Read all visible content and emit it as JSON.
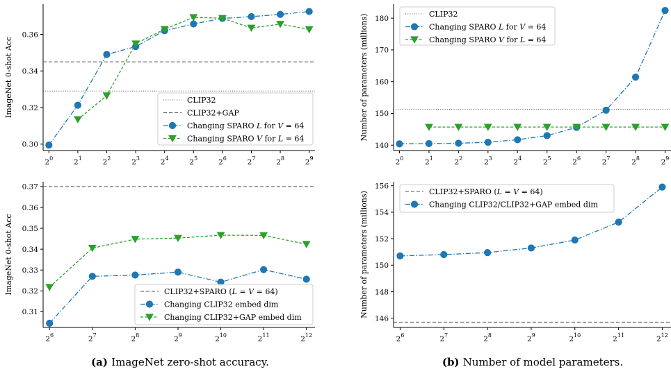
{
  "colors": {
    "blue": "#1f77b4",
    "green": "#2ca02c",
    "ref_line": "#555555"
  },
  "captions": [
    {
      "tag": "(a)",
      "text": "ImageNet zero-shot accuracy."
    },
    {
      "tag": "(b)",
      "text": "Number of model parameters."
    }
  ],
  "chart_data": [
    {
      "type": "line",
      "ylabel": "ImageNet 0-shot Acc",
      "x_ticks": [
        {
          "base": "2",
          "exp": "0"
        },
        {
          "base": "2",
          "exp": "1"
        },
        {
          "base": "2",
          "exp": "2"
        },
        {
          "base": "2",
          "exp": "3"
        },
        {
          "base": "2",
          "exp": "4"
        },
        {
          "base": "2",
          "exp": "5"
        },
        {
          "base": "2",
          "exp": "6"
        },
        {
          "base": "2",
          "exp": "7"
        },
        {
          "base": "2",
          "exp": "8"
        },
        {
          "base": "2",
          "exp": "9"
        }
      ],
      "x": [
        0,
        1,
        2,
        3,
        4,
        5,
        6,
        7,
        8,
        9
      ],
      "xlim": [
        -0.2,
        9.2
      ],
      "ylim": [
        0.2965,
        0.3765
      ],
      "y_ticks": [
        "0.30",
        "0.32",
        "0.34",
        "0.36"
      ],
      "hlines": [
        {
          "name": "CLIP32",
          "value": 0.329,
          "style": "dotted"
        },
        {
          "name": "CLIP32+GAP",
          "value": 0.345,
          "style": "dashed"
        }
      ],
      "series": [
        {
          "name": "Changing SPARO L for V = 64",
          "name_parts": [
            "Changing SPARO ",
            "L",
            " for ",
            "V",
            " = 64"
          ],
          "marker": "circle",
          "color": "blue",
          "x": [
            0,
            1,
            2,
            3,
            4,
            5,
            6,
            7,
            8,
            9
          ],
          "values": [
            0.2995,
            0.3213,
            0.349,
            0.3533,
            0.362,
            0.3657,
            0.3687,
            0.3697,
            0.3709,
            0.3725
          ]
        },
        {
          "name": "Changing SPARO V for L = 64",
          "name_parts": [
            "Changing SPARO ",
            "V",
            " for ",
            "L",
            " = 64"
          ],
          "marker": "triangle",
          "color": "green",
          "x": [
            1,
            2,
            3,
            4,
            5,
            6,
            7,
            8,
            9
          ],
          "values": [
            0.3135,
            0.3265,
            0.3549,
            0.3628,
            0.3693,
            0.3688,
            0.3635,
            0.3656,
            0.3627
          ]
        }
      ],
      "legend": "lower-right"
    },
    {
      "type": "line",
      "ylabel": "Number of parameters (millions)",
      "x_ticks": [
        {
          "base": "2",
          "exp": "0"
        },
        {
          "base": "2",
          "exp": "1"
        },
        {
          "base": "2",
          "exp": "2"
        },
        {
          "base": "2",
          "exp": "3"
        },
        {
          "base": "2",
          "exp": "4"
        },
        {
          "base": "2",
          "exp": "5"
        },
        {
          "base": "2",
          "exp": "6"
        },
        {
          "base": "2",
          "exp": "7"
        },
        {
          "base": "2",
          "exp": "8"
        },
        {
          "base": "2",
          "exp": "9"
        }
      ],
      "x": [
        0,
        1,
        2,
        3,
        4,
        5,
        6,
        7,
        8,
        9
      ],
      "xlim": [
        -0.2,
        9.2
      ],
      "ylim": [
        138.3,
        184.4
      ],
      "y_ticks": [
        "140",
        "150",
        "160",
        "170",
        "180"
      ],
      "hlines": [
        {
          "name": "CLIP32",
          "value": 151.3,
          "style": "dotted"
        }
      ],
      "series": [
        {
          "name": "Changing SPARO L for V = 64",
          "name_parts": [
            "Changing SPARO ",
            "L",
            " for ",
            "V",
            " = 64"
          ],
          "marker": "circle",
          "color": "blue",
          "x": [
            0,
            1,
            2,
            3,
            4,
            5,
            6,
            7,
            8,
            9
          ],
          "values": [
            140.4,
            140.5,
            140.6,
            140.9,
            141.7,
            143.0,
            145.6,
            151.0,
            161.4,
            182.4
          ]
        },
        {
          "name": "Changing SPARO V for L = 64",
          "name_parts": [
            "Changing SPARO ",
            "V",
            " for ",
            "L",
            " = 64"
          ],
          "marker": "triangle",
          "color": "green",
          "x": [
            1,
            2,
            3,
            4,
            5,
            6,
            7,
            8,
            9
          ],
          "values": [
            145.7,
            145.7,
            145.7,
            145.7,
            145.7,
            145.7,
            145.7,
            145.7,
            145.7
          ]
        }
      ],
      "legend": "top-left"
    },
    {
      "type": "line",
      "ylabel": "ImageNet 0-shot Acc",
      "x_ticks": [
        {
          "base": "2",
          "exp": "6"
        },
        {
          "base": "2",
          "exp": "7"
        },
        {
          "base": "2",
          "exp": "8"
        },
        {
          "base": "2",
          "exp": "9"
        },
        {
          "base": "2",
          "exp": "10"
        },
        {
          "base": "2",
          "exp": "11"
        },
        {
          "base": "2",
          "exp": "12"
        }
      ],
      "x": [
        6,
        7,
        8,
        9,
        10,
        11,
        12
      ],
      "xlim": [
        5.85,
        12.2
      ],
      "ylim": [
        0.3025,
        0.3723
      ],
      "y_ticks": [
        "0.31",
        "0.32",
        "0.33",
        "0.34",
        "0.35",
        "0.36",
        "0.37"
      ],
      "hlines": [
        {
          "name": "CLIP32+SPARO (L = V = 64)",
          "value": 0.37,
          "style": "dashed"
        }
      ],
      "series": [
        {
          "name": "Changing CLIP32 embed dim",
          "marker": "circle",
          "color": "blue",
          "x": [
            6,
            7,
            8,
            9,
            10,
            11,
            12
          ],
          "values": [
            0.3045,
            0.327,
            0.3276,
            0.329,
            0.3242,
            0.3302,
            0.3256
          ]
        },
        {
          "name": "Changing CLIP32+GAP embed dim",
          "marker": "triangle",
          "color": "green",
          "x": [
            6,
            7,
            8,
            9,
            10,
            11,
            12
          ],
          "values": [
            0.3218,
            0.3405,
            0.3448,
            0.3453,
            0.3467,
            0.3466,
            0.3424
          ]
        }
      ],
      "legend": "lower-right"
    },
    {
      "type": "line",
      "ylabel": "Number of parameters (millions)",
      "x_ticks": [
        {
          "base": "2",
          "exp": "6"
        },
        {
          "base": "2",
          "exp": "7"
        },
        {
          "base": "2",
          "exp": "8"
        },
        {
          "base": "2",
          "exp": "9"
        },
        {
          "base": "2",
          "exp": "10"
        },
        {
          "base": "2",
          "exp": "11"
        },
        {
          "base": "2",
          "exp": "12"
        }
      ],
      "x": [
        6,
        7,
        8,
        9,
        10,
        11,
        12
      ],
      "xlim": [
        5.85,
        12.2
      ],
      "ylim": [
        145.3,
        156.3
      ],
      "y_ticks": [
        "146",
        "148",
        "150",
        "152",
        "154",
        "156"
      ],
      "hlines": [
        {
          "name": "CLIP32+SPARO (L = V = 64)",
          "value": 145.7,
          "style": "dashed"
        }
      ],
      "series": [
        {
          "name": "Changing CLIP32/CLIP32+GAP embed dim",
          "marker": "circle",
          "color": "blue",
          "x": [
            6,
            7,
            8,
            9,
            10,
            11,
            12
          ],
          "values": [
            150.7,
            150.8,
            150.95,
            151.3,
            151.9,
            153.25,
            155.9
          ]
        }
      ],
      "legend": "top-left"
    }
  ]
}
